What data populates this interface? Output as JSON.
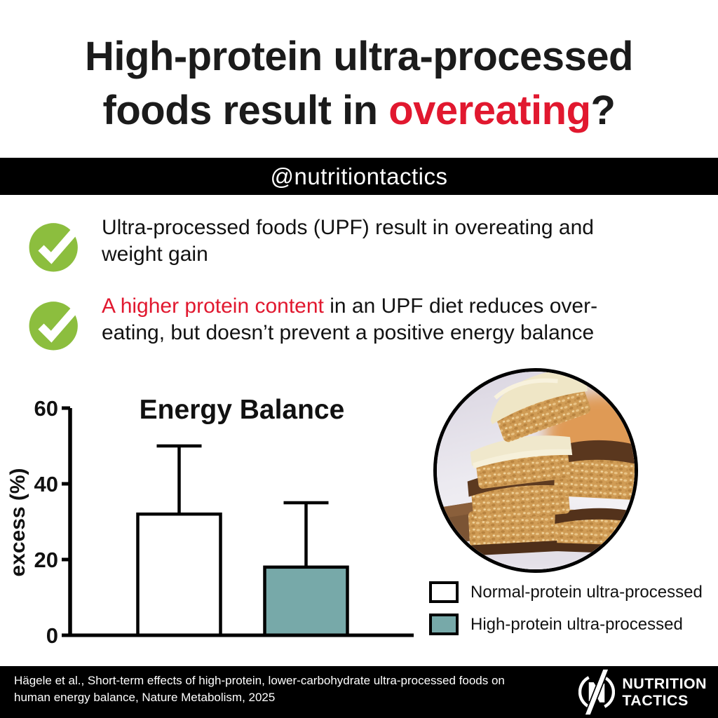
{
  "title": {
    "line1": "High-protein ultra-processed",
    "line2_prefix": "foods result in ",
    "line2_highlight": "overeating",
    "line2_suffix": "?"
  },
  "handle": {
    "text": "@nutritiontactics"
  },
  "bullets": [
    {
      "icon": "checkmark-icon",
      "line1": "Ultra-processed foods (UPF) result in overeating and",
      "line2": "weight gain"
    },
    {
      "icon": "checkmark-icon",
      "highlight": "A higher protein content",
      "line1_rest": " in an UPF diet reduces over-",
      "line2": "eating, but doesn’t prevent a positive energy balance"
    }
  ],
  "chart_data": {
    "type": "bar",
    "title": "Energy Balance",
    "xlabel": "",
    "ylabel": "excess (%)",
    "ylim": [
      0,
      60
    ],
    "yticks": [
      0,
      20,
      40,
      60
    ],
    "categories": [
      "Normal-protein ultra-processed",
      "High-protein ultra-processed"
    ],
    "values": [
      32,
      18
    ],
    "error_upper": [
      50,
      35
    ],
    "bar_colors": [
      "#ffffff",
      "#77a9a9"
    ],
    "bar_outline": "#000000",
    "grid": false,
    "legend_position": "lower-right"
  },
  "icons": {
    "bullet_icon": "checkmark-icon",
    "photo": "protein-bars-photo",
    "brand_icon": "nutrition-tactics-logo"
  },
  "footer": {
    "citation_line1": "Hägele et al., Short-term effects of high-protein, lower-carbohydrate ultra-processed foods on",
    "citation_line2": "human energy balance, Nature Metabolism, 2025",
    "brand_line1": "NUTRITION",
    "brand_line2": "TACTICS"
  },
  "colors": {
    "accent_red": "#e1182f",
    "check_green": "#8cbe3e",
    "bar_teal": "#77a9a9",
    "band_black": "#000000",
    "text_black": "#161616"
  }
}
